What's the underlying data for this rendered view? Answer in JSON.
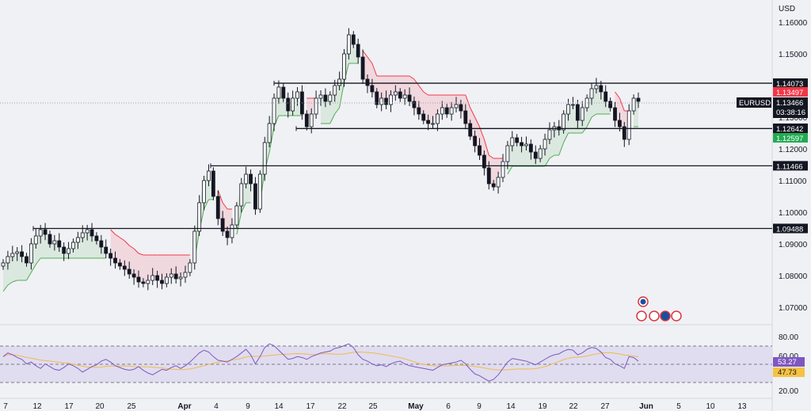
{
  "chart_data": [
    {
      "type": "candlestick",
      "symbol": "EURUSD",
      "currency": "USD",
      "y_ticks": [
        "1.16000",
        "1.15000",
        "1.14000",
        "1.13000",
        "1.12000",
        "1.11000",
        "1.10000",
        "1.09000",
        "1.08000",
        "1.07000"
      ],
      "x_ticks": [
        "7",
        "12",
        "17",
        "20",
        "25",
        "Apr",
        "4",
        "9",
        "14",
        "17",
        "22",
        "25",
        "May",
        "6",
        "9",
        "14",
        "19",
        "22",
        "27",
        "Jun",
        "5",
        "10",
        "13"
      ],
      "current_price": "1.13466",
      "countdown": "03:38:16",
      "price_tags": [
        {
          "value": "1.14073",
          "kind": "level"
        },
        {
          "value": "1.13497",
          "kind": "red"
        },
        {
          "value": "1.12642",
          "kind": "level"
        },
        {
          "value": "1.12597",
          "kind": "green"
        },
        {
          "value": "1.11466",
          "kind": "level"
        },
        {
          "value": "1.09488",
          "kind": "level"
        }
      ],
      "horizontal_levels": [
        {
          "price": "1.14073",
          "from": "~Apr 12"
        },
        {
          "price": "1.12642",
          "from": "~Apr 16"
        },
        {
          "price": "1.11466",
          "from": "~Apr 4"
        },
        {
          "price": "1.09488",
          "from": "~Mar 12"
        }
      ],
      "close_series": [
        1.084,
        1.086,
        1.087,
        1.0875,
        1.086,
        1.084,
        1.09,
        1.0925,
        1.0945,
        1.093,
        1.09,
        1.091,
        1.089,
        1.087,
        1.0885,
        1.0905,
        1.092,
        1.0935,
        1.0945,
        1.0925,
        1.091,
        1.089,
        1.087,
        1.0855,
        1.084,
        1.083,
        1.082,
        1.0805,
        1.0795,
        1.078,
        1.0775,
        1.0785,
        1.08,
        1.0785,
        1.0775,
        1.0795,
        1.0805,
        1.079,
        1.0795,
        1.081,
        1.084,
        1.094,
        1.103,
        1.11,
        1.113,
        1.105,
        1.098,
        1.094,
        1.092,
        1.096,
        1.102,
        1.109,
        1.112,
        1.109,
        1.101,
        1.112,
        1.122,
        1.128,
        1.136,
        1.1395,
        1.136,
        1.132,
        1.136,
        1.138,
        1.131,
        1.127,
        1.131,
        1.136,
        1.137,
        1.135,
        1.137,
        1.14,
        1.142,
        1.15,
        1.156,
        1.153,
        1.149,
        1.142,
        1.14,
        1.138,
        1.134,
        1.136,
        1.134,
        1.137,
        1.138,
        1.136,
        1.137,
        1.135,
        1.133,
        1.131,
        1.129,
        1.128,
        1.128,
        1.131,
        1.133,
        1.131,
        1.133,
        1.134,
        1.132,
        1.128,
        1.124,
        1.121,
        1.118,
        1.114,
        1.109,
        1.108,
        1.111,
        1.116,
        1.121,
        1.1235,
        1.122,
        1.121,
        1.1215,
        1.119,
        1.117,
        1.12,
        1.123,
        1.126,
        1.127,
        1.126,
        1.131,
        1.134,
        1.134,
        1.129,
        1.133,
        1.136,
        1.139,
        1.14,
        1.138,
        1.135,
        1.133,
        1.129,
        1.127,
        1.123,
        1.132,
        1.136,
        1.135
      ]
    },
    {
      "type": "line",
      "indicator": "RSI",
      "y_ticks": [
        "80.00",
        "60.00",
        "20.00"
      ],
      "rsi_value": "53.27",
      "ma_value": "47.73",
      "band_upper": 70,
      "band_mid": 50,
      "band_lower": 30,
      "rsi_series": [
        58,
        62,
        60,
        57,
        55,
        50,
        52,
        48,
        45,
        50,
        47,
        44,
        43,
        46,
        50,
        48,
        45,
        41,
        44,
        47,
        49,
        53,
        55,
        52,
        48,
        46,
        44,
        43,
        44,
        47,
        43,
        40,
        38,
        41,
        44,
        43,
        46,
        48,
        45,
        48,
        52,
        57,
        62,
        65,
        63,
        58,
        54,
        53,
        52,
        55,
        58,
        62,
        66,
        60,
        50,
        58,
        68,
        72,
        70,
        65,
        60,
        55,
        56,
        58,
        57,
        55,
        58,
        60,
        62,
        63,
        64,
        67,
        68,
        70,
        72,
        68,
        60,
        55,
        53,
        50,
        48,
        49,
        47,
        50,
        52,
        53,
        50,
        48,
        47,
        46,
        45,
        44,
        43,
        46,
        49,
        50,
        51,
        52,
        54,
        50,
        44,
        39,
        37,
        34,
        31,
        33,
        38,
        45,
        52,
        56,
        55,
        54,
        53,
        51,
        49,
        52,
        55,
        58,
        60,
        61,
        64,
        66,
        65,
        60,
        62,
        66,
        68,
        67,
        63,
        57,
        55,
        50,
        48,
        45,
        58,
        57,
        53
      ]
    }
  ]
}
